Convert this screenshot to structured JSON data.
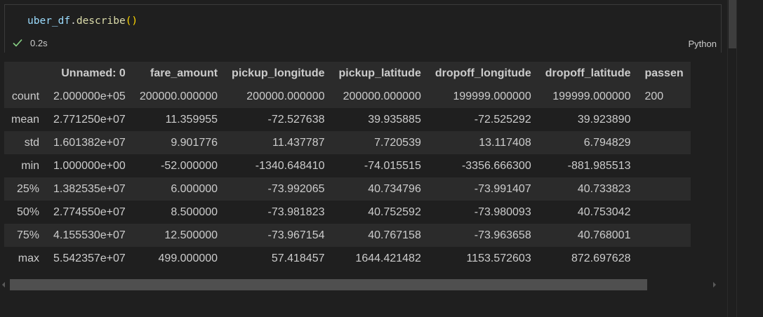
{
  "code_cell": {
    "code": {
      "var": "uber_df",
      "dot": ".",
      "method": "describe",
      "parens": "()"
    },
    "status_icon": "check-icon",
    "exec_time": "0.2s",
    "language": "Python"
  },
  "table": {
    "columns": [
      "",
      "Unnamed: 0",
      "fare_amount",
      "pickup_longitude",
      "pickup_latitude",
      "dropoff_longitude",
      "dropoff_latitude",
      "passen"
    ],
    "rows": [
      {
        "label": "count",
        "values": [
          "2.000000e+05",
          "200000.000000",
          "200000.000000",
          "200000.000000",
          "199999.000000",
          "199999.000000",
          "200"
        ]
      },
      {
        "label": "mean",
        "values": [
          "2.771250e+07",
          "11.359955",
          "-72.527638",
          "39.935885",
          "-72.525292",
          "39.923890",
          ""
        ]
      },
      {
        "label": "std",
        "values": [
          "1.601382e+07",
          "9.901776",
          "11.437787",
          "7.720539",
          "13.117408",
          "6.794829",
          ""
        ]
      },
      {
        "label": "min",
        "values": [
          "1.000000e+00",
          "-52.000000",
          "-1340.648410",
          "-74.015515",
          "-3356.666300",
          "-881.985513",
          ""
        ]
      },
      {
        "label": "25%",
        "values": [
          "1.382535e+07",
          "6.000000",
          "-73.992065",
          "40.734796",
          "-73.991407",
          "40.733823",
          ""
        ]
      },
      {
        "label": "50%",
        "values": [
          "2.774550e+07",
          "8.500000",
          "-73.981823",
          "40.752592",
          "-73.980093",
          "40.753042",
          ""
        ]
      },
      {
        "label": "75%",
        "values": [
          "4.155530e+07",
          "12.500000",
          "-73.967154",
          "40.767158",
          "-73.963658",
          "40.768001",
          ""
        ]
      },
      {
        "label": "max",
        "values": [
          "5.542357e+07",
          "499.000000",
          "57.418457",
          "1644.421482",
          "1153.572603",
          "872.697628",
          ""
        ]
      }
    ]
  },
  "colors": {
    "background": "#1f1f1f",
    "row_alt": "#2b2b2b",
    "check": "#89d185"
  }
}
